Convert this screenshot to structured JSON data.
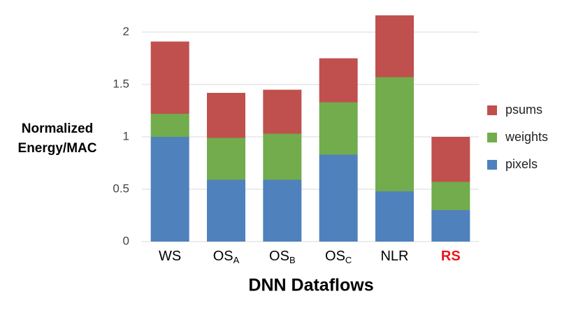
{
  "chart_data": {
    "type": "stacked_bar",
    "categories": [
      "WS",
      "OS",
      "OS",
      "OS",
      "NLR",
      "RS"
    ],
    "category_subscripts": [
      null,
      "A",
      "B",
      "C",
      null,
      null
    ],
    "category_colors": [
      "#000000",
      "#000000",
      "#000000",
      "#000000",
      "#000000",
      "#e8161b"
    ],
    "series": [
      {
        "name": "pixels",
        "color": "#4f81bd",
        "values": [
          1.0,
          0.59,
          0.59,
          0.83,
          0.48,
          0.3
        ]
      },
      {
        "name": "weights",
        "color": "#72ac4d",
        "values": [
          0.22,
          0.4,
          0.44,
          0.5,
          1.09,
          0.27
        ]
      },
      {
        "name": "psums",
        "color": "#c0504d",
        "values": [
          0.69,
          0.43,
          0.42,
          0.42,
          0.59,
          0.43
        ]
      }
    ],
    "ylim": [
      0,
      2
    ],
    "yticks": [
      0,
      0.5,
      1,
      1.5,
      2
    ],
    "grid": true,
    "y_label": [
      "Normalized",
      "Energy/MAC"
    ],
    "x_label": "DNN Dataflows",
    "legend": "right"
  }
}
